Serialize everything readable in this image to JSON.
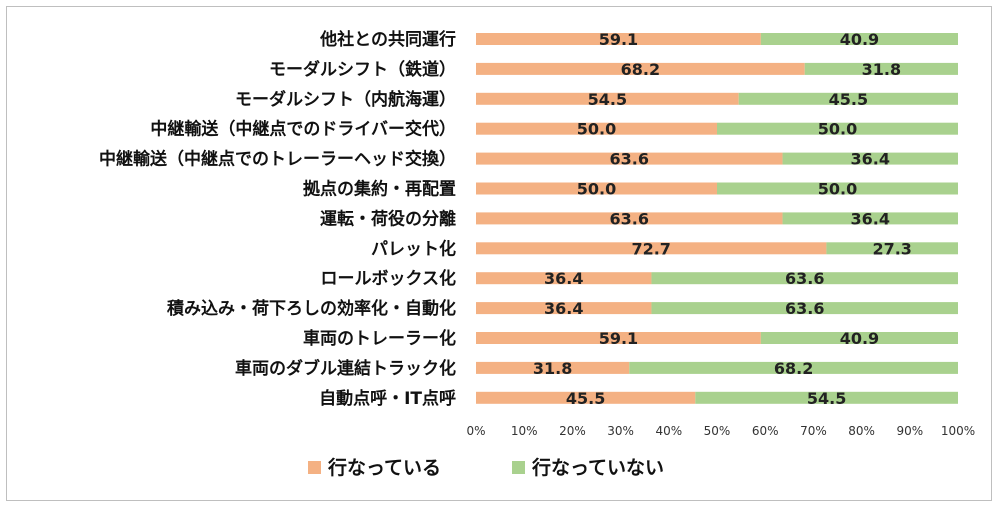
{
  "chart_data": {
    "type": "bar",
    "orientation": "horizontal",
    "stacked": true,
    "categories": [
      "他社との共同運行",
      "モーダルシフト（鉄道）",
      "モーダルシフト（内航海運）",
      "中継輸送（中継点でのドライバー交代）",
      "中継輸送（中継点でのトレーラーヘッド交換）",
      "拠点の集約・再配置",
      "運転・荷役の分離",
      "パレット化",
      "ロールボックス化",
      "積み込み・荷下ろしの効率化・自動化",
      "車両のトレーラー化",
      "車両のダブル連結トラック化",
      "自動点呼・IT点呼"
    ],
    "series": [
      {
        "name": "行なっている",
        "color": "#f4b183",
        "values": [
          59.1,
          68.2,
          54.5,
          50.0,
          63.6,
          50.0,
          63.6,
          72.7,
          36.4,
          36.4,
          59.1,
          31.8,
          45.5
        ]
      },
      {
        "name": "行なっていない",
        "color": "#a9d18e",
        "values": [
          40.9,
          31.8,
          45.5,
          50.0,
          36.4,
          50.0,
          36.4,
          27.3,
          63.6,
          63.6,
          40.9,
          68.2,
          54.5
        ]
      }
    ],
    "xlim": [
      0,
      100
    ],
    "xticks": [
      "0%",
      "10%",
      "20%",
      "30%",
      "40%",
      "50%",
      "60%",
      "70%",
      "80%",
      "90%",
      "100%"
    ],
    "legend_position": "bottom",
    "grid": false
  }
}
